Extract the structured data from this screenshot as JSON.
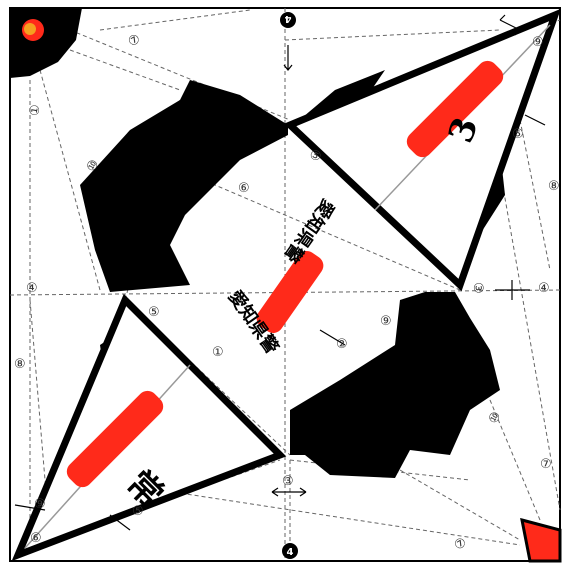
{
  "sheet": {
    "center_label_upper": "愛知県警",
    "center_label_lower": "愛知県警",
    "wing_char_upper": "3",
    "wing_char_lower": "常",
    "step_markers": {
      "top_center": "4",
      "bottom_center": "4"
    },
    "step_numbers": {
      "s7_top": "⑦",
      "s1_left": "①",
      "s10_left": "⑩",
      "s4_left": "④",
      "s8_left": "⑧",
      "s5_upper": "⑤",
      "s6_upper": "⑥",
      "s9_upper_wing": "⑨",
      "s5_right_wing": "⑤",
      "s8_right": "⑧",
      "s3_right": "③",
      "s4_right": "④",
      "s9_center_right": "⑨",
      "s2_center": "②",
      "s1_center": "①",
      "s5_lower": "⑤",
      "s10_right": "⑩",
      "s7_right_bottom": "⑦",
      "s3_bottom": "③",
      "s7_bottom": "⑦",
      "s5_lower_wing": "⑤",
      "s9_lower_wing": "⑨",
      "s6_lower_wing": "⑥"
    },
    "colors": {
      "black": "#000000",
      "red": "#ff2a1a",
      "orange": "#f5a020",
      "white": "#ffffff",
      "dash": "#555555"
    }
  }
}
